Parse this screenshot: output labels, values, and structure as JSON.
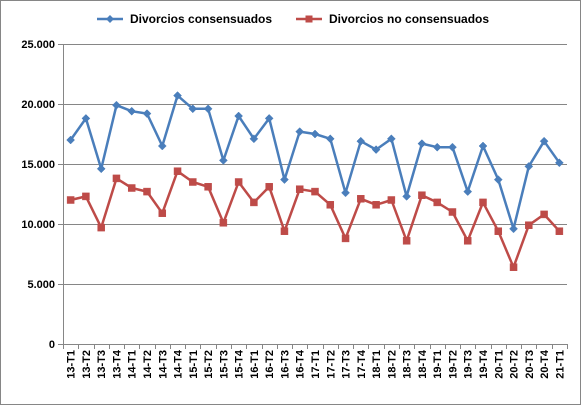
{
  "chart_data": {
    "type": "line",
    "title": "",
    "xlabel": "",
    "ylabel": "",
    "ylim": [
      0,
      25000
    ],
    "yticks": [
      "0",
      "5.000",
      "10.000",
      "15.000",
      "20.000",
      "25.000"
    ],
    "ytick_values": [
      0,
      5000,
      10000,
      15000,
      20000,
      25000
    ],
    "grid": "horizontal",
    "legend": "top",
    "categories": [
      "13-T1",
      "13-T2",
      "13-T3",
      "13-T4",
      "14-T1",
      "14-T2",
      "14-T3",
      "14-T4",
      "15-T1",
      "15-T2",
      "15-T3",
      "15-T4",
      "16-T1",
      "16-T2",
      "16-T3",
      "16-T4",
      "17-T1",
      "17-T2",
      "17-T3",
      "17-T4",
      "18-T1",
      "18-T2",
      "18-T3",
      "18-T4",
      "19-T1",
      "19-T2",
      "19-T3",
      "19-T4",
      "20-T1",
      "20-T2",
      "20-T3",
      "20-T4",
      "21-T1"
    ],
    "series": [
      {
        "name": "Divorcios consensuados",
        "color": "#4A7EBB",
        "marker": "diamond",
        "values": [
          17000,
          18800,
          14600,
          19900,
          19400,
          19200,
          16500,
          20700,
          19600,
          19600,
          15300,
          19000,
          17100,
          18800,
          13700,
          17700,
          17500,
          17100,
          12600,
          16900,
          16200,
          17100,
          12300,
          16700,
          16400,
          16400,
          12700,
          16500,
          13700,
          9600,
          14800,
          16900,
          15100
        ]
      },
      {
        "name": "Divorcios no consensuados",
        "color": "#BE4B48",
        "marker": "square",
        "values": [
          12000,
          12300,
          9700,
          13800,
          13000,
          12700,
          10900,
          14400,
          13500,
          13100,
          10100,
          13500,
          11800,
          13100,
          9400,
          12900,
          12700,
          11600,
          8800,
          12100,
          11600,
          12000,
          8600,
          12400,
          11800,
          11000,
          8600,
          11800,
          9400,
          6400,
          9900,
          10800,
          9400
        ]
      }
    ]
  }
}
